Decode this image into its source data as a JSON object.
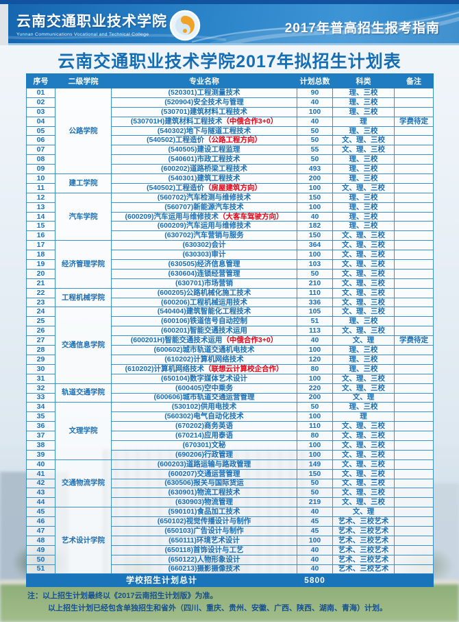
{
  "banner": {
    "school_name_cn": "云南交通职业技术学院",
    "school_name_en": "Yunnan Communications Vocational and Technical College",
    "guide_title": "2017年普高招生报考指南",
    "logo_icon": "school-emblem-swirl"
  },
  "page_title": "云南交通职业技术学院2017年拟招生计划表",
  "colors": {
    "banner_blue": "#2b84c8",
    "banner_dark": "#11539f",
    "table_header_bg": "#1f7cc0",
    "cell_text_blue": "#1a6fb5",
    "highlight_red": "#e60012",
    "total_bar_bg": "#1a74ba",
    "note_text": "#14508f"
  },
  "table": {
    "headers": [
      "序号",
      "二级学院",
      "专业名称",
      "计划总数",
      "科类",
      "备注"
    ],
    "total_label": "学校招生计划总计",
    "total_value": "5800",
    "rows": [
      {
        "no": "01",
        "college": "公路学院",
        "span": 9,
        "major": "(520301)工程测量技术",
        "red": "",
        "plan": "90",
        "category": "理、三校",
        "remark": ""
      },
      {
        "no": "02",
        "major": "(520904)安全技术与管理",
        "red": "",
        "plan": "40",
        "category": "理、三校",
        "remark": ""
      },
      {
        "no": "03",
        "major": "(530701)建筑材料工程技术",
        "red": "",
        "plan": "100",
        "category": "理、三校",
        "remark": ""
      },
      {
        "no": "04",
        "major": "(530701H)建筑材料工程技术",
        "red": "（中俄合作3+0）",
        "plan": "40",
        "category": "理",
        "remark": "学费待定"
      },
      {
        "no": "05",
        "major": "(540302)地下与隧道工程技术",
        "red": "",
        "plan": "50",
        "category": "理、三校",
        "remark": ""
      },
      {
        "no": "06",
        "major": "(540502)工程造价",
        "red": "（公路工程方向）",
        "plan": "50",
        "category": "文、理、三校",
        "remark": ""
      },
      {
        "no": "07",
        "major": "(540505)建设工程监理",
        "red": "",
        "plan": "55",
        "category": "文、理、三校",
        "remark": ""
      },
      {
        "no": "08",
        "major": "(540601)市政工程技术",
        "red": "",
        "plan": "50",
        "category": "理、三校",
        "remark": ""
      },
      {
        "no": "09",
        "major": "(600202)道路桥梁工程技术",
        "red": "",
        "plan": "493",
        "category": "理、三校",
        "remark": ""
      },
      {
        "no": "10",
        "college": "建工学院",
        "span": 2,
        "major": "(540301)建筑工程技术",
        "red": "",
        "plan": "200",
        "category": "理、三校",
        "remark": ""
      },
      {
        "no": "11",
        "major": "(540502)工程造价",
        "red": "（房屋建筑方向）",
        "plan": "100",
        "category": "文、理、三校",
        "remark": ""
      },
      {
        "no": "12",
        "college": "汽车学院",
        "span": 5,
        "major": "(560702)汽车检测与维修技术",
        "red": "",
        "plan": "150",
        "category": "理、三校",
        "remark": ""
      },
      {
        "no": "13",
        "major": "(560707)新能源汽车技术",
        "red": "",
        "plan": "100",
        "category": "理、三校",
        "remark": ""
      },
      {
        "no": "14",
        "major": "(600209)汽车运用与维修技术",
        "red": "（大客车驾驶方向）",
        "plan": "40",
        "category": "理、三校",
        "remark": ""
      },
      {
        "no": "15",
        "major": "(600209)汽车运用与维修技术",
        "red": "",
        "plan": "182",
        "category": "理、三校",
        "remark": ""
      },
      {
        "no": "16",
        "major": "(630702)汽车营销与服务",
        "red": "",
        "plan": "150",
        "category": "文、理、三校",
        "remark": ""
      },
      {
        "no": "17",
        "college": "经济管理学院",
        "span": 5,
        "major": "(630302)会计",
        "red": "",
        "plan": "364",
        "category": "文、理、三校",
        "remark": ""
      },
      {
        "no": "18",
        "major": "(630303)审计",
        "red": "",
        "plan": "100",
        "category": "文、理、三校",
        "remark": ""
      },
      {
        "no": "19",
        "major": "(630505)经济信息管理",
        "red": "",
        "plan": "103",
        "category": "文、理、三校",
        "remark": ""
      },
      {
        "no": "20",
        "major": "(630604)连锁经营管理",
        "red": "",
        "plan": "50",
        "category": "文、理、三校",
        "remark": ""
      },
      {
        "no": "21",
        "major": "(630701)市场营销",
        "red": "",
        "plan": "210",
        "category": "文、理、三校",
        "remark": ""
      },
      {
        "no": "22",
        "college": "工程机械学院",
        "span": 2,
        "major": "(600205)公路机械化施工技术",
        "red": "",
        "plan": "110",
        "category": "文、理、三校",
        "remark": ""
      },
      {
        "no": "23",
        "major": "(600206)工程机械运用技术",
        "red": "",
        "plan": "336",
        "category": "文、理、三校",
        "remark": ""
      },
      {
        "no": "24",
        "college": "交通信息学院",
        "span": 8,
        "major": "(540404)建筑智能化工程技术",
        "red": "",
        "plan": "105",
        "category": "文、理、三校",
        "remark": ""
      },
      {
        "no": "25",
        "major": "(600106)铁道信号自动控制",
        "red": "",
        "plan": "51",
        "category": "理、三校",
        "remark": ""
      },
      {
        "no": "26",
        "major": "(600201)智能交通技术运用",
        "red": "",
        "plan": "113",
        "category": "文、理、三校",
        "remark": ""
      },
      {
        "no": "27",
        "major": "(600201H)智能交通技术运用",
        "red": "（中俄合作3+0）",
        "plan": "40",
        "category": "文、理",
        "remark": "学费待定"
      },
      {
        "no": "28",
        "major": "(600602)城市轨道交通机电技术",
        "red": "",
        "plan": "100",
        "category": "理、三校",
        "remark": ""
      },
      {
        "no": "29",
        "major": "(610202)计算机网络技术",
        "red": "",
        "plan": "120",
        "category": "理、三校",
        "remark": ""
      },
      {
        "no": "30",
        "major": "(610202)计算机网络技术",
        "red": "（联想云计算校企合作）",
        "plan": "80",
        "category": "理、三校",
        "remark": ""
      },
      {
        "no": "31",
        "major": "(650104)数字媒体艺术设计",
        "red": "",
        "plan": "100",
        "category": "文、理、三校",
        "remark": ""
      },
      {
        "no": "32",
        "college": "轨道交通学院",
        "span": 2,
        "major": "(600405)空中乘务",
        "red": "",
        "plan": "220",
        "category": "文、理、三校",
        "remark": ""
      },
      {
        "no": "33",
        "major": "(600606)城市轨道交通运营管理",
        "red": "",
        "plan": "200",
        "category": "文、理",
        "remark": ""
      },
      {
        "no": "34",
        "college": "文理学院",
        "span": 6,
        "major": "(530102)供用电技术",
        "red": "",
        "plan": "50",
        "category": "理、三校",
        "remark": ""
      },
      {
        "no": "35",
        "major": "(560302)电气自动化技术",
        "red": "",
        "plan": "100",
        "category": "理",
        "remark": ""
      },
      {
        "no": "36",
        "major": "(670202)商务英语",
        "red": "",
        "plan": "110",
        "category": "文、理、三校",
        "remark": ""
      },
      {
        "no": "37",
        "major": "(670214)应用泰语",
        "red": "",
        "plan": "80",
        "category": "文、理、三校",
        "remark": ""
      },
      {
        "no": "38",
        "major": "(670301)文秘",
        "red": "",
        "plan": "100",
        "category": "文、理、三校",
        "remark": ""
      },
      {
        "no": "39",
        "major": "(690206)行政管理",
        "red": "",
        "plan": "100",
        "category": "文、理、三校",
        "remark": ""
      },
      {
        "no": "40",
        "college": "交通物流学院",
        "span": 5,
        "major": "(600203)道路运输与路政管理",
        "red": "",
        "plan": "149",
        "category": "文、理、三校",
        "remark": ""
      },
      {
        "no": "41",
        "major": "(600207)交通运营管理",
        "red": "",
        "plan": "150",
        "category": "文、理、三校",
        "remark": ""
      },
      {
        "no": "42",
        "major": "(630506)报关与国际货运",
        "red": "",
        "plan": "50",
        "category": "文、理、三校",
        "remark": ""
      },
      {
        "no": "43",
        "major": "(630901)物流工程技术",
        "red": "",
        "plan": "50",
        "category": "文、理、三校",
        "remark": ""
      },
      {
        "no": "44",
        "major": "(630903)物流管理",
        "red": "",
        "plan": "219",
        "category": "文、理、三校",
        "remark": ""
      },
      {
        "no": "45",
        "college": "艺术设计学院",
        "span": 7,
        "major": "(590101)食品加工技术",
        "red": "",
        "plan": "40",
        "category": "文、理",
        "remark": ""
      },
      {
        "no": "46",
        "major": "(650102)视觉传播设计与制作",
        "red": "",
        "plan": "45",
        "category": "艺术、三校艺术",
        "remark": ""
      },
      {
        "no": "47",
        "major": "(650103)广告设计与制作",
        "red": "",
        "plan": "45",
        "category": "艺术、三校艺术",
        "remark": ""
      },
      {
        "no": "48",
        "major": "(650111)环境艺术设计",
        "red": "",
        "plan": "100",
        "category": "艺术、三校艺术",
        "remark": ""
      },
      {
        "no": "49",
        "major": "(650118)首饰设计与工艺",
        "red": "",
        "plan": "40",
        "category": "艺术、三校艺术",
        "remark": ""
      },
      {
        "no": "50",
        "major": "(650122)人物形象设计",
        "red": "",
        "plan": "40",
        "category": "艺术、三校艺术",
        "remark": ""
      },
      {
        "no": "51",
        "major": "(660213)摄影摄像技术",
        "red": "",
        "plan": "40",
        "category": "艺术、三校艺术",
        "remark": ""
      }
    ]
  },
  "notes": {
    "line1": "注：以上招生计划最终以《2017云南招生计划版》为准。",
    "line2": "以上招生计划已经包含单独招生和省外（四川、重庆、贵州、安徽、广西、陕西、湖南、青海）计划。"
  }
}
